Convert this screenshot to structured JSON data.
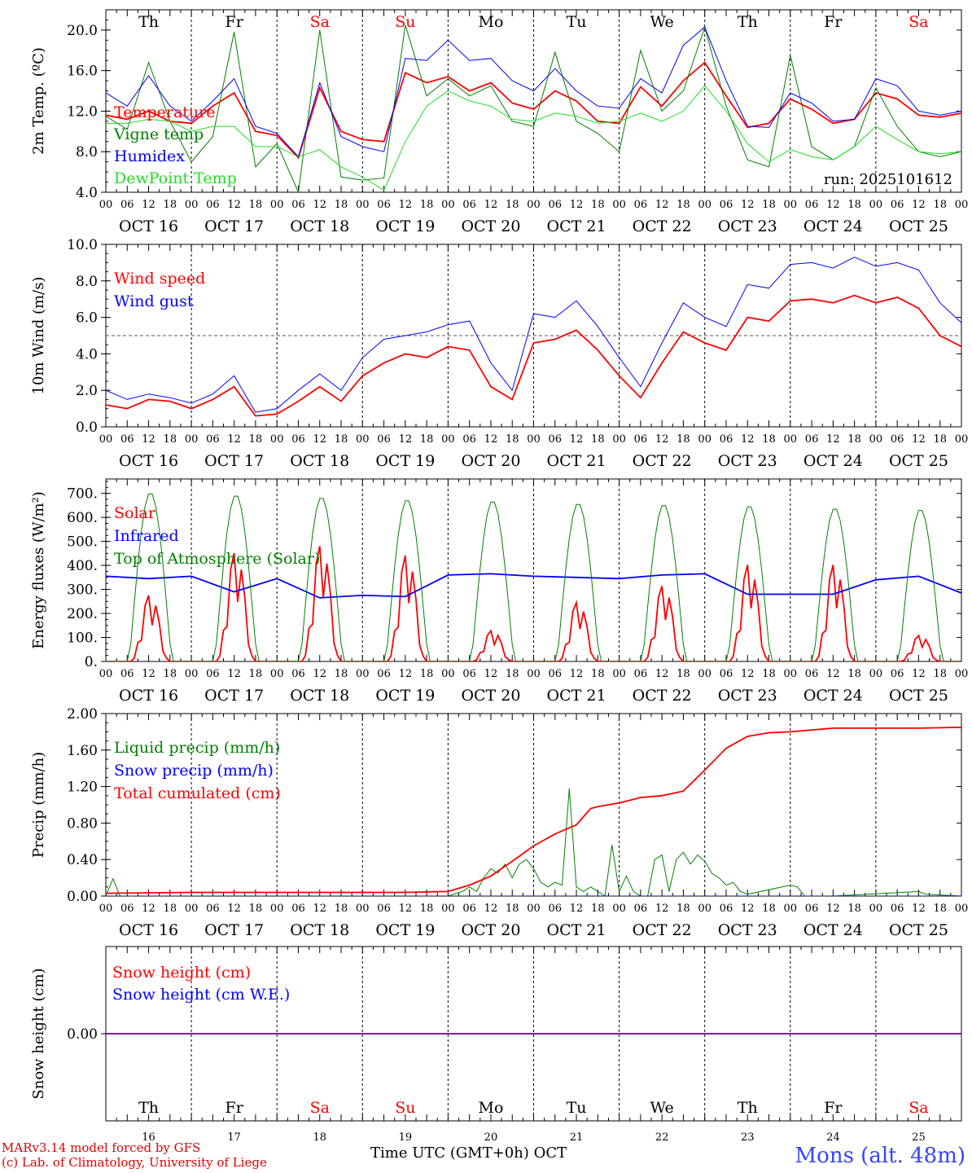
{
  "days": {
    "weekday": [
      "Th",
      "Fr",
      "Sa",
      "Su",
      "Mo",
      "Tu",
      "We",
      "Th",
      "Fr",
      "Sa"
    ],
    "weekend": [
      false,
      false,
      true,
      true,
      false,
      false,
      false,
      false,
      false,
      true
    ],
    "dates": [
      "OCT 16",
      "OCT 17",
      "OCT 18",
      "OCT 19",
      "OCT 20",
      "OCT 21",
      "OCT 22",
      "OCT 23",
      "OCT 24",
      "OCT 25"
    ],
    "bottom_day_numbers": [
      "16",
      "17",
      "18",
      "19",
      "20",
      "21",
      "22",
      "23",
      "24",
      "25"
    ],
    "hour_ticks": [
      "00",
      "06",
      "12",
      "18"
    ],
    "end_tick": "00"
  },
  "colors": {
    "red": "#ff0000",
    "green": "#008000",
    "blue": "#0000ff",
    "lightgreen": "#22dd22",
    "weekend": "#ff0000"
  },
  "chart_data": [
    {
      "id": "temp",
      "type": "line",
      "ylabel": "2m Temp. (ºC)",
      "ylim": [
        4,
        22
      ],
      "yticks": [
        "4.0",
        "8.0",
        "12.0",
        "16.0",
        "20.0"
      ],
      "ytick_values": [
        4,
        8,
        12,
        16,
        20
      ],
      "annotation": "run: 2025101612",
      "x_unit": "hours since Oct 16 00 UTC",
      "series": [
        {
          "name": "Temperature",
          "color": "red",
          "x": [
            0,
            6,
            12,
            18,
            24,
            30,
            36,
            42,
            48,
            54,
            60,
            66,
            72,
            78,
            84,
            90,
            96,
            102,
            108,
            114,
            120,
            126,
            132,
            138,
            144,
            150,
            156,
            162,
            168,
            174,
            180,
            186,
            192,
            198,
            204,
            210,
            216,
            222,
            228,
            234,
            240
          ],
          "y": [
            11.6,
            11.2,
            12.0,
            11.0,
            10.8,
            12.5,
            13.8,
            10.0,
            9.6,
            7.4,
            14.3,
            10.0,
            9.2,
            9.0,
            15.8,
            14.8,
            15.4,
            14.0,
            14.8,
            12.8,
            12.2,
            14.0,
            13.0,
            11.0,
            10.8,
            14.4,
            12.5,
            15.0,
            16.8,
            13.5,
            10.4,
            10.8,
            13.2,
            12.2,
            10.8,
            11.2,
            13.8,
            13.2,
            11.6,
            11.4,
            11.8
          ]
        },
        {
          "name": "Vigne temp",
          "color": "green",
          "x": [
            0,
            6,
            12,
            18,
            24,
            30,
            36,
            42,
            48,
            54,
            60,
            66,
            72,
            78,
            84,
            90,
            96,
            102,
            108,
            114,
            120,
            126,
            132,
            138,
            144,
            150,
            156,
            162,
            168,
            174,
            180,
            186,
            192,
            198,
            204,
            210,
            216,
            222,
            228,
            234,
            240
          ],
          "y": [
            11.5,
            10.2,
            16.8,
            11.0,
            7.0,
            9.5,
            19.8,
            6.5,
            8.8,
            4.0,
            20.0,
            5.5,
            5.2,
            5.4,
            20.5,
            13.5,
            15.2,
            13.5,
            14.5,
            11.0,
            10.5,
            17.8,
            11.0,
            9.8,
            8.0,
            18.0,
            12.0,
            14.0,
            20.3,
            12.5,
            7.2,
            6.5,
            17.5,
            8.5,
            7.2,
            8.5,
            14.3,
            10.5,
            8.0,
            7.5,
            8.0
          ]
        },
        {
          "name": "Humidex",
          "color": "blue",
          "x": [
            0,
            6,
            12,
            18,
            24,
            30,
            36,
            42,
            48,
            54,
            60,
            66,
            72,
            78,
            84,
            90,
            96,
            102,
            108,
            114,
            120,
            126,
            132,
            138,
            144,
            150,
            156,
            162,
            168,
            174,
            180,
            186,
            192,
            198,
            204,
            210,
            216,
            222,
            228,
            234,
            240
          ],
          "y": [
            13.8,
            12.5,
            15.5,
            12.5,
            11.0,
            13.0,
            15.2,
            10.5,
            9.8,
            7.5,
            14.8,
            9.5,
            8.5,
            8.0,
            17.2,
            17.0,
            19.0,
            17.0,
            17.2,
            15.0,
            14.0,
            16.2,
            14.0,
            12.5,
            12.3,
            15.2,
            13.8,
            18.5,
            20.3,
            15.0,
            10.5,
            10.4,
            13.8,
            12.8,
            11.0,
            11.2,
            15.2,
            14.5,
            12.0,
            11.6,
            12.0
          ]
        },
        {
          "name": "DewPoint Temp",
          "color": "lightgreen",
          "x": [
            0,
            6,
            12,
            18,
            24,
            30,
            36,
            42,
            48,
            54,
            60,
            66,
            72,
            78,
            84,
            90,
            96,
            102,
            108,
            114,
            120,
            126,
            132,
            138,
            144,
            150,
            156,
            162,
            168,
            174,
            180,
            186,
            192,
            198,
            204,
            210,
            216,
            222,
            228,
            234,
            240
          ],
          "y": [
            10.8,
            10.8,
            11.2,
            11.0,
            10.0,
            10.5,
            10.5,
            8.5,
            8.5,
            7.5,
            8.2,
            6.5,
            5.5,
            4.2,
            9.0,
            12.5,
            14.0,
            13.0,
            12.5,
            11.2,
            11.0,
            11.8,
            11.5,
            10.8,
            11.0,
            11.8,
            11.0,
            12.0,
            14.5,
            12.0,
            8.8,
            7.0,
            8.2,
            7.5,
            7.2,
            8.5,
            10.5,
            9.2,
            8.0,
            7.8,
            8.0
          ]
        }
      ]
    },
    {
      "id": "wind",
      "type": "line",
      "ylabel": "10m Wind (m/s)",
      "ylim": [
        0,
        10
      ],
      "yticks": [
        "0.0",
        "2.0",
        "4.0",
        "6.0",
        "8.0",
        "10.0"
      ],
      "ytick_values": [
        0,
        2,
        4,
        6,
        8,
        10
      ],
      "reference_line": 5,
      "x_unit": "hours since Oct 16 00 UTC",
      "series": [
        {
          "name": "Wind speed",
          "color": "red",
          "x": [
            0,
            6,
            12,
            18,
            24,
            30,
            36,
            42,
            48,
            54,
            60,
            66,
            72,
            78,
            84,
            90,
            96,
            102,
            108,
            114,
            120,
            126,
            132,
            138,
            144,
            150,
            156,
            162,
            168,
            174,
            180,
            186,
            192,
            198,
            204,
            210,
            216,
            222,
            228,
            234,
            240
          ],
          "y": [
            1.2,
            1.0,
            1.5,
            1.4,
            1.0,
            1.5,
            2.2,
            0.6,
            0.7,
            1.4,
            2.2,
            1.4,
            2.8,
            3.5,
            4.0,
            3.8,
            4.4,
            4.2,
            2.2,
            1.5,
            4.6,
            4.8,
            5.3,
            4.2,
            2.8,
            1.6,
            3.5,
            5.2,
            4.6,
            4.2,
            6.0,
            5.8,
            6.9,
            7.0,
            6.8,
            7.2,
            6.8,
            7.1,
            6.5,
            5.0,
            4.4
          ]
        },
        {
          "name": "Wind gust",
          "color": "blue",
          "x": [
            0,
            6,
            12,
            18,
            24,
            30,
            36,
            42,
            48,
            54,
            60,
            66,
            72,
            78,
            84,
            90,
            96,
            102,
            108,
            114,
            120,
            126,
            132,
            138,
            144,
            150,
            156,
            162,
            168,
            174,
            180,
            186,
            192,
            198,
            204,
            210,
            216,
            222,
            228,
            234,
            240
          ],
          "y": [
            2.0,
            1.5,
            1.8,
            1.6,
            1.3,
            1.8,
            2.8,
            0.8,
            1.0,
            2.0,
            2.9,
            2.0,
            3.8,
            4.8,
            5.0,
            5.2,
            5.6,
            5.8,
            3.5,
            2.0,
            6.2,
            6.0,
            6.9,
            5.5,
            3.8,
            2.2,
            4.6,
            6.8,
            6.0,
            5.5,
            7.8,
            7.6,
            8.9,
            9.0,
            8.7,
            9.3,
            8.8,
            9.0,
            8.6,
            6.8,
            5.7
          ]
        }
      ]
    },
    {
      "id": "flux",
      "type": "line",
      "ylabel": "Energy fluxes (W/m²)",
      "ylim": [
        0,
        760
      ],
      "yticks": [
        "0.",
        "100.",
        "200.",
        "300.",
        "400.",
        "500.",
        "600.",
        "700."
      ],
      "ytick_values": [
        0,
        100,
        200,
        300,
        400,
        500,
        600,
        700
      ],
      "x_unit": "hours since Oct 16 00 UTC",
      "series": [
        {
          "name": "Solar",
          "color": "red",
          "daily_peaks": [
            280,
            460,
            490,
            450,
            130,
            250,
            320,
            410,
            410,
            110
          ]
        },
        {
          "name": "Infrared",
          "color": "blue",
          "x": [
            0,
            12,
            24,
            36,
            48,
            60,
            72,
            84,
            96,
            108,
            120,
            132,
            144,
            156,
            168,
            180,
            192,
            204,
            216,
            228,
            240
          ],
          "y": [
            355,
            345,
            355,
            290,
            345,
            265,
            275,
            270,
            360,
            365,
            355,
            350,
            345,
            360,
            365,
            280,
            280,
            280,
            340,
            355,
            285
          ]
        },
        {
          "name": "Top of Atmosphere (Solar)",
          "color": "green",
          "daily_peaks": [
            705,
            695,
            685,
            675,
            670,
            660,
            655,
            650,
            640,
            635
          ]
        }
      ]
    },
    {
      "id": "precip",
      "type": "line",
      "ylabel": "Precip (mm/h)",
      "ylim": [
        0,
        2
      ],
      "yticks": [
        "0.00",
        "0.40",
        "0.80",
        "1.20",
        "1.60",
        "2.00"
      ],
      "ytick_values": [
        0,
        0.4,
        0.8,
        1.2,
        1.6,
        2.0
      ],
      "x_unit": "hours since Oct 16 00 UTC",
      "series": [
        {
          "name": "Liquid precip (mm/h)",
          "color": "green",
          "x": [
            0,
            2,
            4,
            24,
            48,
            96,
            100,
            102,
            104,
            106,
            108,
            110,
            112,
            114,
            116,
            118,
            120,
            122,
            124,
            126,
            128,
            130,
            132,
            134,
            136,
            138,
            140,
            142,
            144,
            146,
            148,
            150,
            152,
            154,
            156,
            158,
            160,
            162,
            164,
            166,
            168,
            170,
            172,
            174,
            176,
            178,
            180,
            192,
            194,
            196,
            204,
            228,
            230,
            240
          ],
          "y": [
            0,
            0.19,
            0,
            0,
            0,
            0,
            0.05,
            0.1,
            0.05,
            0.2,
            0.3,
            0.25,
            0.35,
            0.2,
            0.35,
            0.4,
            0.3,
            0.15,
            0.1,
            0.15,
            0.12,
            1.18,
            0.1,
            0.05,
            0.1,
            0.05,
            0.0,
            0.56,
            0.05,
            0.22,
            0.05,
            0.0,
            0.0,
            0.4,
            0.45,
            0.05,
            0.4,
            0.48,
            0.35,
            0.45,
            0.38,
            0.25,
            0.2,
            0.12,
            0.15,
            0.05,
            0.02,
            0.12,
            0.1,
            0.0,
            0.0,
            0.05,
            0.02,
            0
          ]
        },
        {
          "name": "Snow precip (mm/h)",
          "color": "blue",
          "x": [
            0,
            240
          ],
          "y": [
            0,
            0
          ]
        },
        {
          "name": "Total cumulated (cm)",
          "color": "red",
          "x": [
            0,
            24,
            48,
            72,
            84,
            96,
            102,
            108,
            114,
            120,
            126,
            132,
            136,
            138,
            144,
            150,
            156,
            162,
            168,
            174,
            180,
            186,
            192,
            204,
            216,
            228,
            240
          ],
          "y": [
            0.03,
            0.04,
            0.04,
            0.04,
            0.04,
            0.05,
            0.12,
            0.22,
            0.38,
            0.55,
            0.68,
            0.78,
            0.96,
            0.98,
            1.02,
            1.08,
            1.1,
            1.15,
            1.38,
            1.62,
            1.75,
            1.79,
            1.8,
            1.84,
            1.84,
            1.84,
            1.85
          ]
        }
      ]
    },
    {
      "id": "snow",
      "type": "line",
      "ylabel": "Snow height (cm)",
      "ylim": [
        -1,
        1
      ],
      "yticks": [
        "0.00"
      ],
      "ytick_values": [
        0
      ],
      "x_unit": "hours since Oct 16 00 UTC",
      "series": [
        {
          "name": "Snow height (cm)",
          "color": "red",
          "x": [
            0,
            240
          ],
          "y": [
            0,
            0
          ]
        },
        {
          "name": "Snow height (cm W.E.)",
          "color": "blue",
          "x": [
            0,
            240
          ],
          "y": [
            0,
            0
          ]
        }
      ]
    }
  ],
  "footer": {
    "credit_line1": "MARv3.14 model forced by GFS",
    "credit_line2": "(c) Lab. of Climatology, University of Liege",
    "xaxis_title": "Time UTC (GMT+0h)",
    "month": "OCT",
    "station": "Mons (alt. 48m)"
  }
}
